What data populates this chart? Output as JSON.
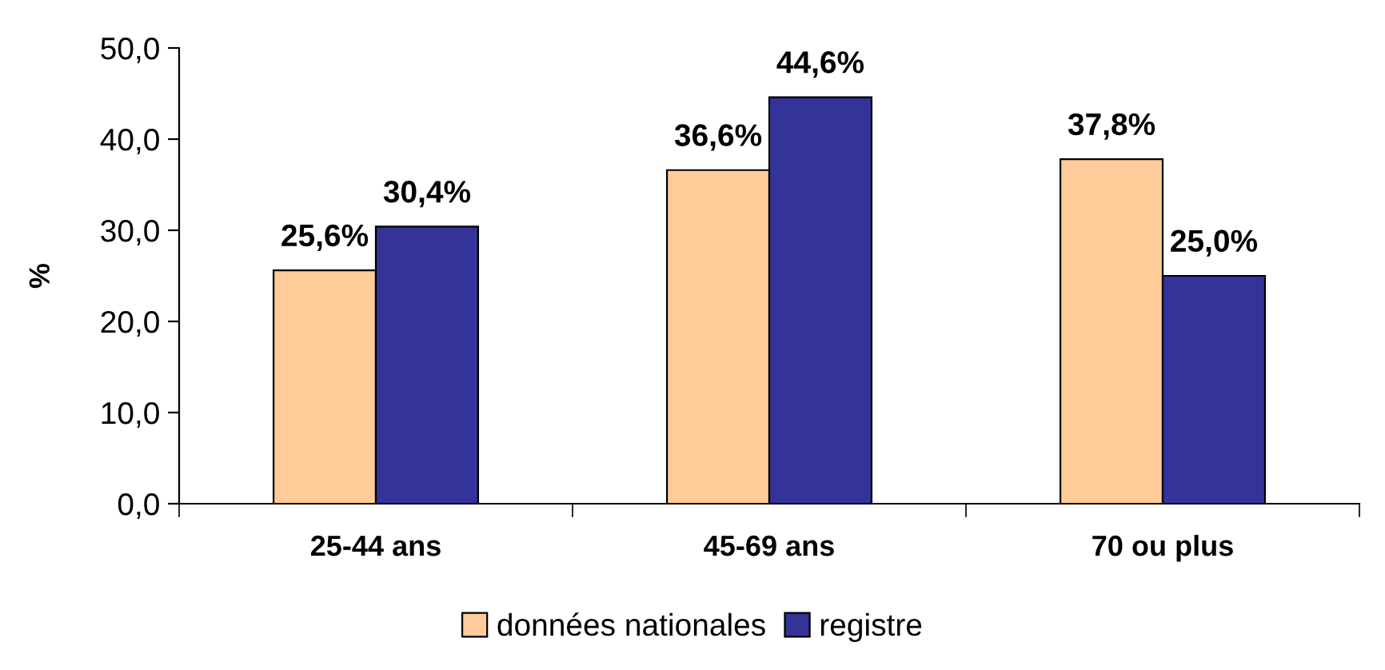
{
  "chart_data": {
    "type": "bar",
    "ylabel": "%",
    "categories": [
      "25-44 ans",
      "45-69 ans",
      "70 ou plus"
    ],
    "series": [
      {
        "name": "données nationales",
        "color": "#ffcc99",
        "values": [
          25.6,
          36.6,
          37.8
        ],
        "value_labels": [
          "25,6%",
          "36,6%",
          "37,8%"
        ]
      },
      {
        "name": "registre",
        "color": "#333399",
        "values": [
          30.4,
          44.6,
          25.0
        ],
        "value_labels": [
          "30,4%",
          "44,6%",
          "25,0%"
        ]
      }
    ],
    "ylim": [
      0,
      50
    ],
    "yticks": [
      {
        "value": 0,
        "label": "0,0"
      },
      {
        "value": 10,
        "label": "10,0"
      },
      {
        "value": 20,
        "label": "20,0"
      },
      {
        "value": 30,
        "label": "30,0"
      },
      {
        "value": 40,
        "label": "40,0"
      },
      {
        "value": 50,
        "label": "50,0"
      }
    ],
    "grid": false,
    "legend": "bottom"
  }
}
